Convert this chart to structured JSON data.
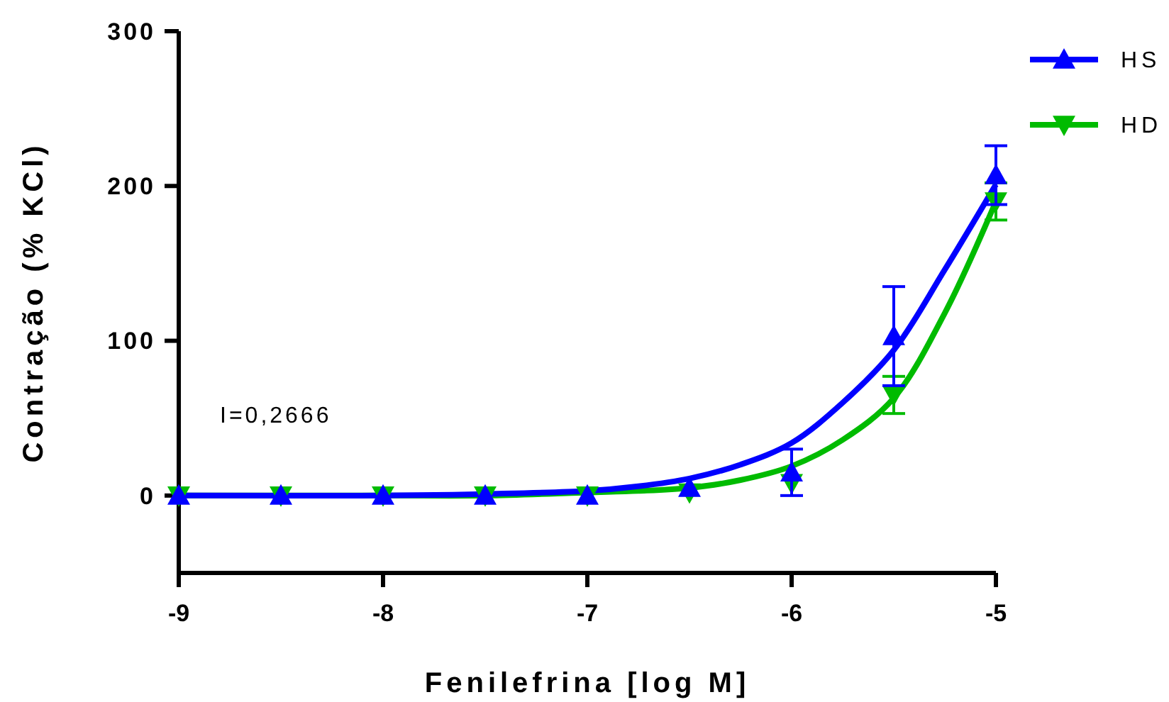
{
  "chart_data": {
    "type": "scatter",
    "xlabel": "Fenilefrina [log M]",
    "ylabel": "Contração (% KCl)",
    "xlim": [
      -9,
      -5
    ],
    "xticks": [
      -9,
      -8,
      -7,
      -6,
      -5
    ],
    "ylim": [
      -50,
      300
    ],
    "yticks": [
      0,
      100,
      200,
      300
    ],
    "grid": false,
    "legend": "top right",
    "annotations": [
      "I=0,2666"
    ],
    "series": [
      {
        "name": "HS",
        "marker": "triangle",
        "color": "#0000ff",
        "x": [
          -9,
          -8.5,
          -8,
          -7.5,
          -7,
          -6.5,
          -6,
          -5.5,
          -5
        ],
        "values": [
          0,
          0,
          0,
          0,
          0,
          5,
          15,
          103,
          207
        ],
        "errors": [
          null,
          null,
          null,
          null,
          null,
          null,
          15,
          32,
          19
        ]
      },
      {
        "name": "HD",
        "marker": "triangle_down",
        "color": "#00bb00",
        "x": [
          -9,
          -8.5,
          -8,
          -7.5,
          -7,
          -6.5,
          -6,
          -5.5,
          -5
        ],
        "values": [
          0,
          0,
          0,
          0,
          0,
          2,
          8,
          65,
          190
        ],
        "errors": [
          null,
          null,
          null,
          null,
          null,
          null,
          null,
          12,
          12
        ]
      },
      {
        "type": "line",
        "color": "#0000ff",
        "x": [
          -9,
          -8,
          -7.5,
          -7,
          -6.75,
          -6.5,
          -6.25,
          -6,
          -5.75,
          -5.5,
          -5.25,
          -5
        ],
        "values": [
          0,
          0,
          1,
          3,
          6,
          11,
          20,
          34,
          60,
          94,
          146,
          201
        ]
      },
      {
        "type": "line",
        "color": "#00bb00",
        "x": [
          -9,
          -8,
          -7.5,
          -7,
          -6.75,
          -6.5,
          -6.25,
          -6,
          -5.75,
          -5.5,
          -5.25,
          -5
        ],
        "values": [
          0,
          0,
          0,
          2,
          3,
          5,
          10,
          19,
          36,
          63,
          118,
          190
        ]
      }
    ]
  }
}
